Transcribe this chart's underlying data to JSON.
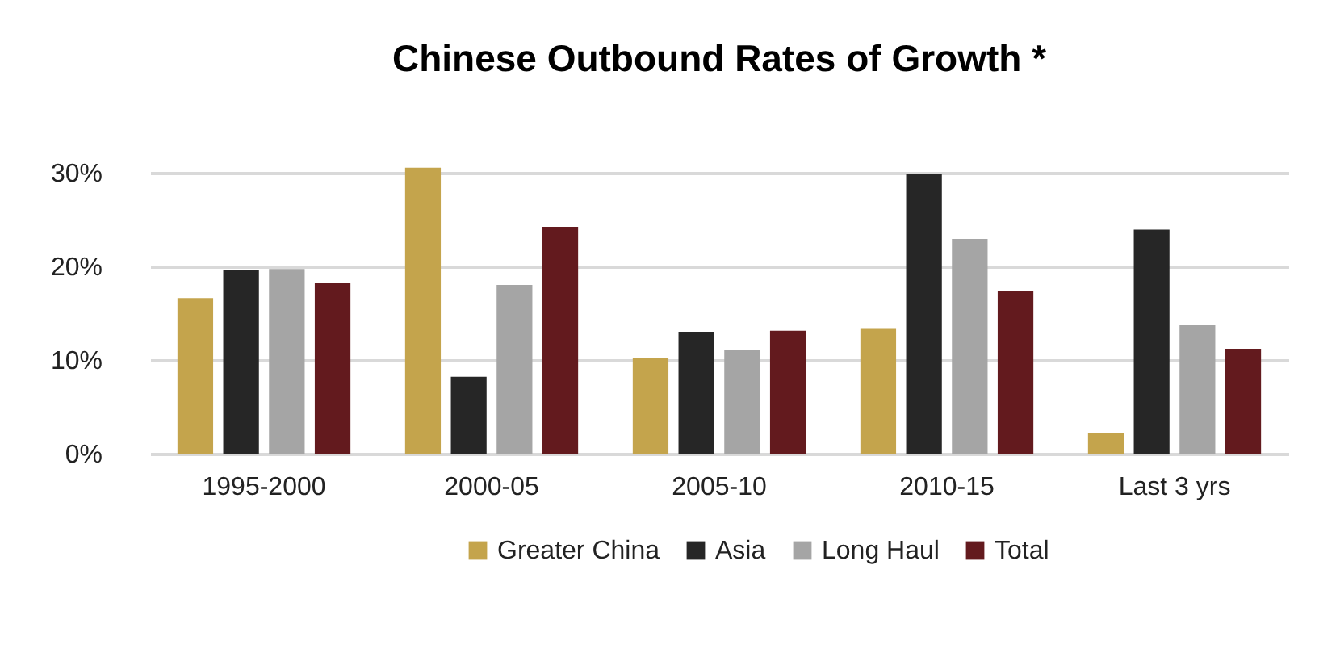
{
  "chart_data": {
    "type": "bar",
    "title": "Chinese Outbound Rates of Growth *",
    "categories": [
      "1995-2000",
      "2000-05",
      "2005-10",
      "2010-15",
      "Last 3 yrs"
    ],
    "series": [
      {
        "name": "Greater China",
        "color": "#c4a44c",
        "values": [
          16.6,
          30.5,
          10.2,
          13.4,
          2.2
        ]
      },
      {
        "name": "Asia",
        "color": "#262626",
        "values": [
          19.6,
          8.2,
          13.0,
          29.8,
          23.9
        ]
      },
      {
        "name": "Long Haul",
        "color": "#a5a5a5",
        "values": [
          19.7,
          18.0,
          11.1,
          22.9,
          13.7
        ]
      },
      {
        "name": "Total",
        "color": "#631a1e",
        "values": [
          18.2,
          24.2,
          13.1,
          17.4,
          11.2
        ]
      }
    ],
    "ylim": [
      0,
      31
    ],
    "yticks": [
      {
        "value": 0,
        "label": "0%"
      },
      {
        "value": 10,
        "label": "10%"
      },
      {
        "value": 20,
        "label": "20%"
      },
      {
        "value": 30,
        "label": "30%"
      }
    ],
    "grid": "y",
    "legend": "bottom"
  }
}
